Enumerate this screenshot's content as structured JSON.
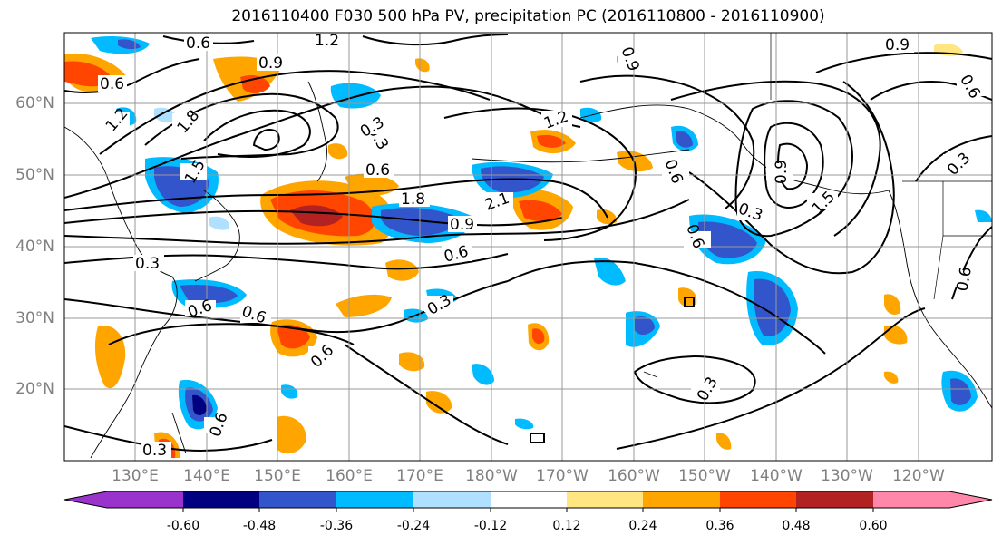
{
  "title": "2016110400 F030 500 hPa PV, precipitation PC (2016110800 - 2016110900)",
  "lat_labels": [
    "60°N",
    "50°N",
    "40°N",
    "30°N",
    "20°N"
  ],
  "lon_labels": [
    "130°E",
    "140°E",
    "150°E",
    "160°E",
    "170°E",
    "180°W",
    "170°W",
    "160°W",
    "150°W",
    "140°W",
    "130°W",
    "120°W"
  ],
  "contour_labels": [
    "0.6",
    "1.2",
    "0.9",
    "0.6",
    "1.2",
    "1.8",
    "1.5",
    "0.3",
    "0.6",
    "1.8",
    "2.1",
    "0.9",
    "0.6",
    "0.3",
    "0.6",
    "0.3",
    "0.6",
    "0.6",
    "0.3",
    "0.9",
    "1.2",
    "0.6",
    "0.3",
    "0.6",
    "0.9",
    "1.5",
    "0.6",
    "0.3",
    "0.9",
    "0.3",
    "0.6",
    "0.3",
    "0.6"
  ],
  "colorbar": {
    "colors": [
      "#9933cc",
      "#000080",
      "#3355cc",
      "#00bbff",
      "#b0e0ff",
      "#ffffff",
      "#ffe680",
      "#ffa500",
      "#ff4500",
      "#b22222",
      "#ff88aa"
    ],
    "tick_labels": [
      "-0.60",
      "-0.48",
      "-0.36",
      "-0.24",
      "-0.12",
      "0.12",
      "0.24",
      "0.36",
      "0.48",
      "0.60"
    ]
  }
}
